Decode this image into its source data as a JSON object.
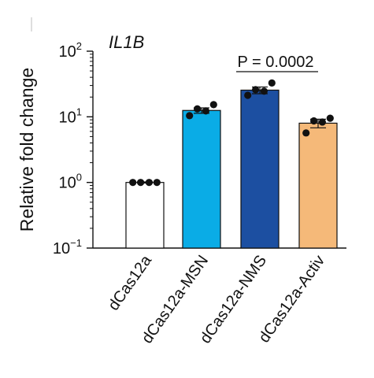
{
  "chart_data": {
    "type": "bar",
    "title": "IL1B",
    "ylabel": "Relative fold change",
    "xlabel": "",
    "yscale": "log",
    "ylim": [
      0.1,
      100
    ],
    "ytick_labels": [
      {
        "base": "10",
        "exp": "2"
      },
      {
        "base": "10",
        "exp": "1"
      },
      {
        "base": "10",
        "exp": "0"
      },
      {
        "base": "10",
        "exp": "−1"
      }
    ],
    "ytick_values": [
      100,
      10,
      1,
      0.1
    ],
    "categories": [
      "dCas12a",
      "dCas12a-MSN",
      "dCas12a-NMS",
      "dCas12a-Activ"
    ],
    "values": [
      1.0,
      12.5,
      25.5,
      8.0
    ],
    "errors": [
      0.02,
      1.2,
      3.0,
      1.2
    ],
    "points": [
      [
        1.0,
        1.0,
        1.0,
        1.0
      ],
      [
        11.0,
        12.5,
        13.0,
        14.5
      ],
      [
        22.5,
        24.5,
        26.0,
        31.0
      ],
      [
        6.0,
        8.2,
        8.8,
        9.0
      ]
    ],
    "colors": [
      "#ffffff",
      "#0aace6",
      "#1c4fa1",
      "#f5b979"
    ],
    "annotation": {
      "text": "P = 0.0002",
      "from_category": 2,
      "to_category": 3
    },
    "grid": false,
    "legend": "none"
  }
}
